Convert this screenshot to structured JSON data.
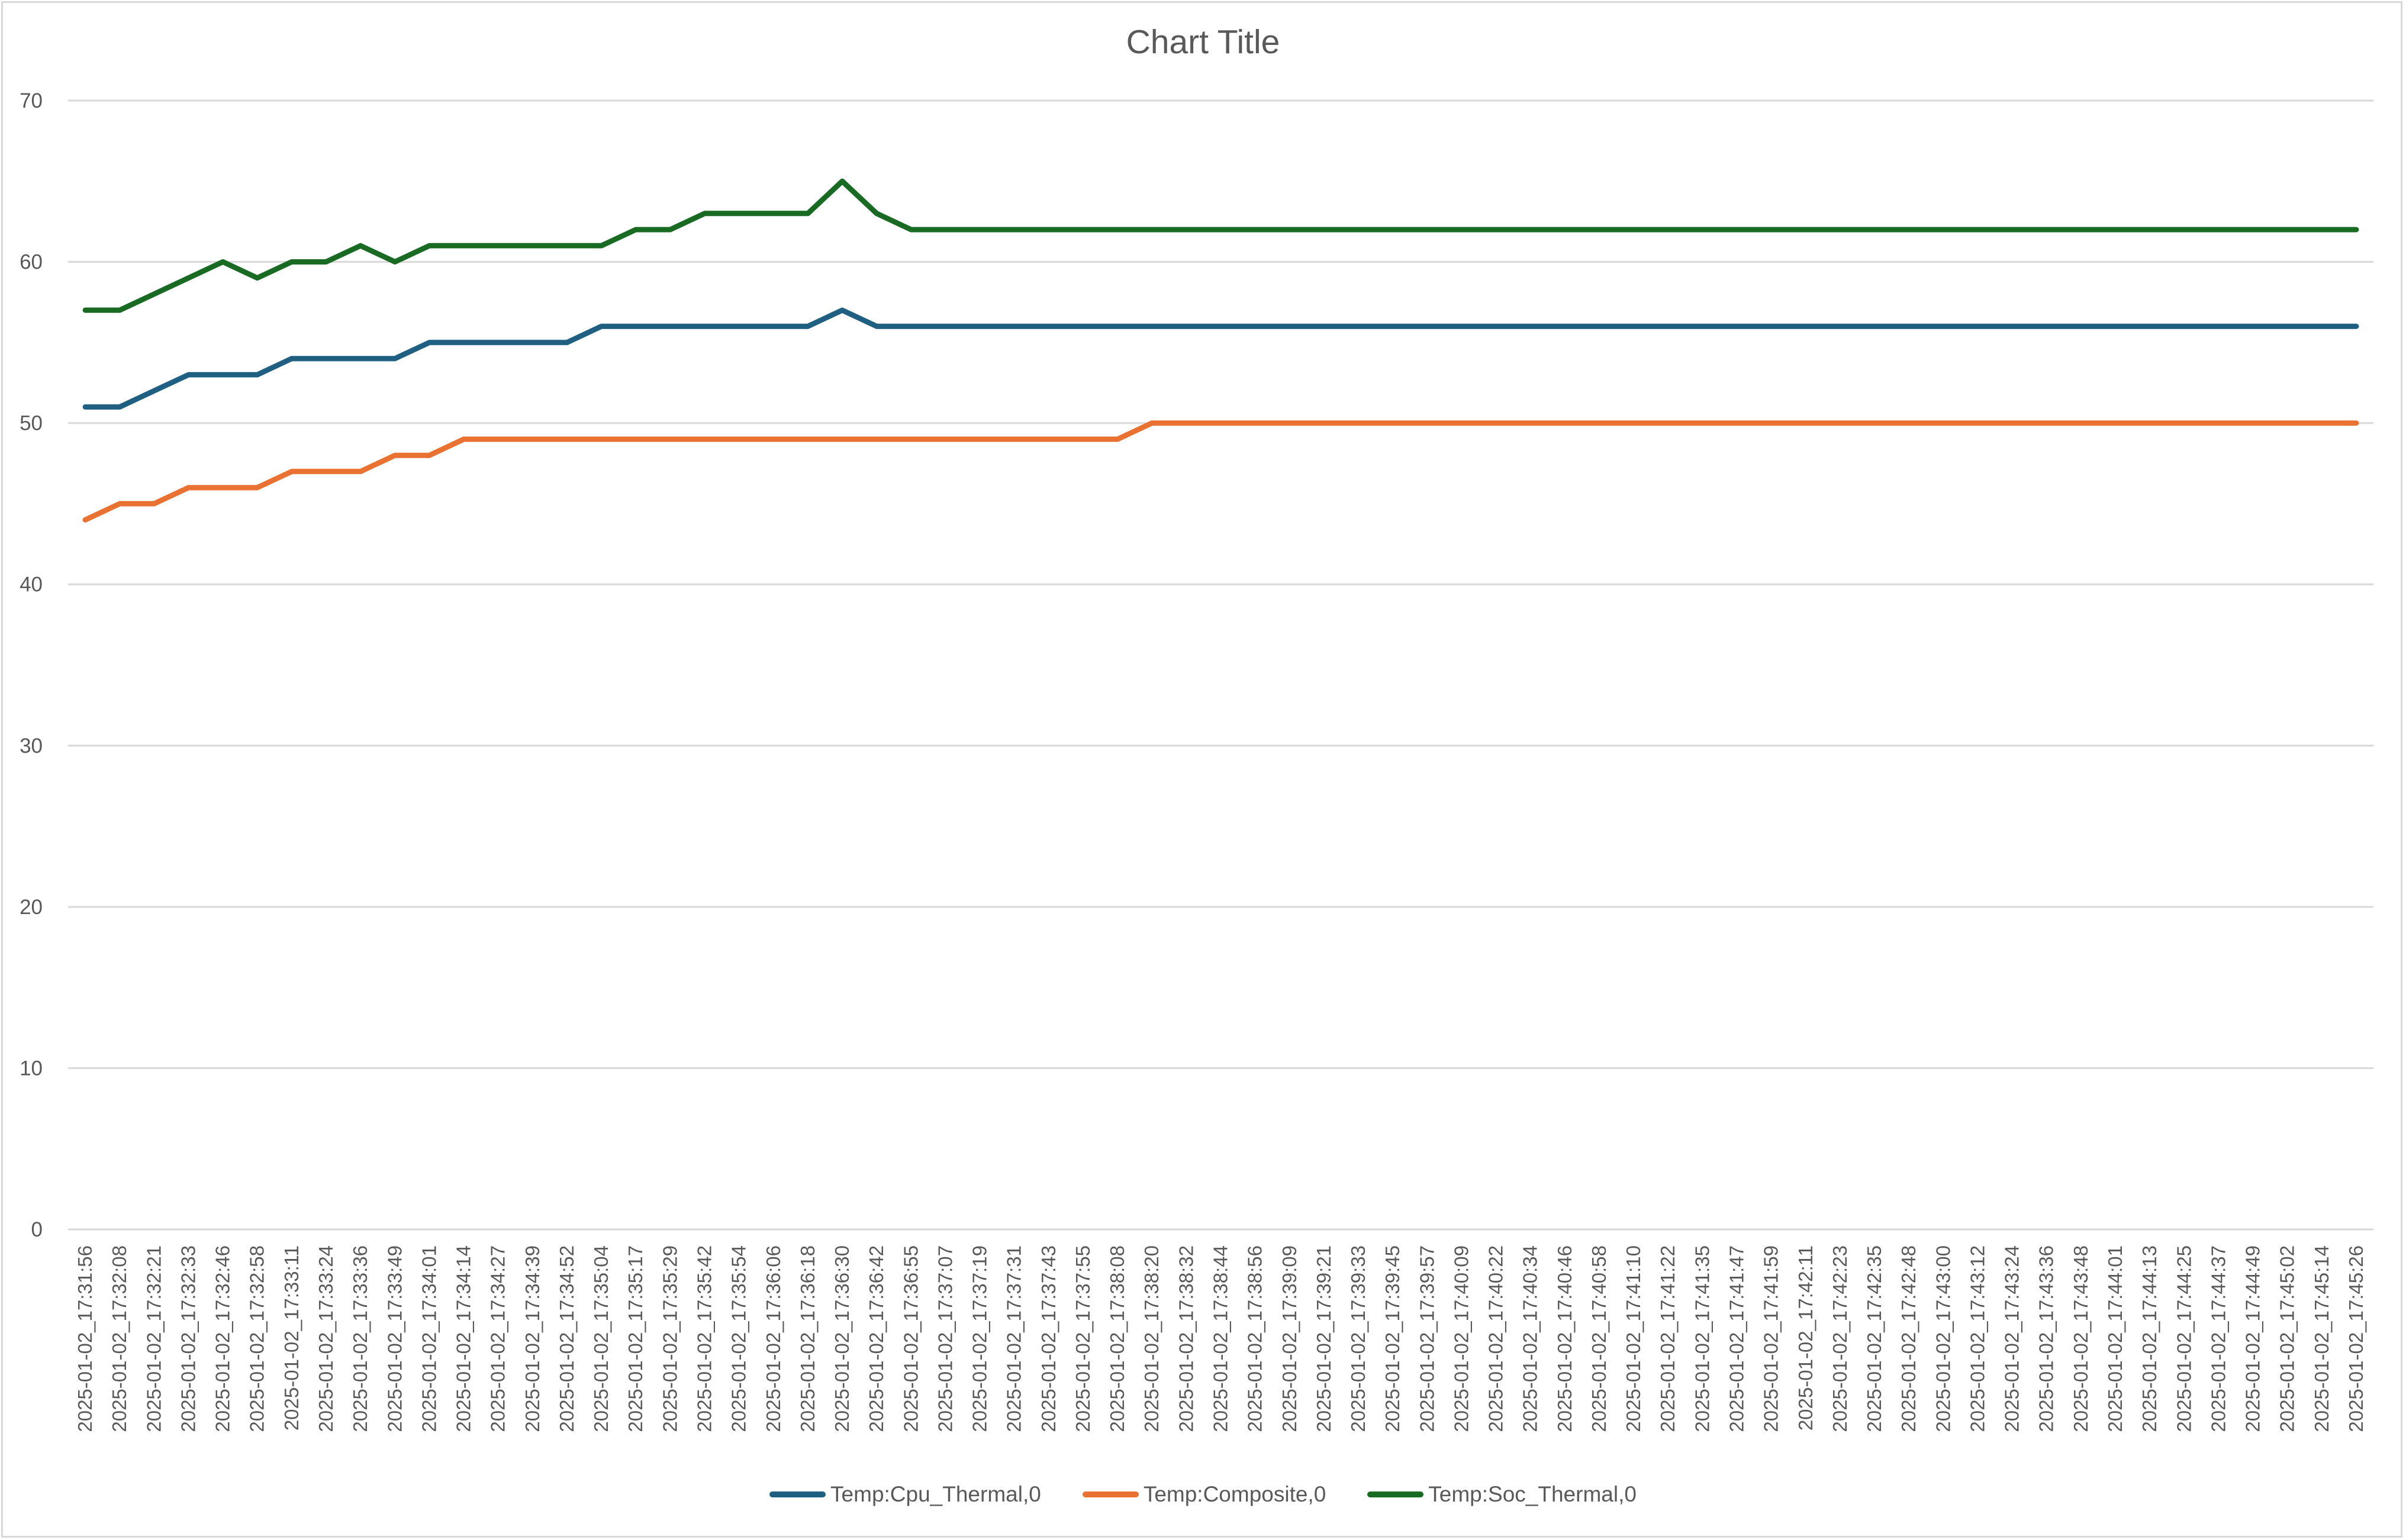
{
  "chart_data": {
    "type": "line",
    "title": "Chart Title",
    "xlabel": "",
    "ylabel": "",
    "ylim": [
      0,
      70
    ],
    "yticks": [
      0,
      10,
      20,
      30,
      40,
      50,
      60,
      70
    ],
    "grid": true,
    "legend_position": "bottom",
    "x_tick_labels": [
      "2025-01-02_17:31:56",
      "2025-01-02_17:32:08",
      "2025-01-02_17:32:21",
      "2025-01-02_17:32:33",
      "2025-01-02_17:32:46",
      "2025-01-02_17:32:58",
      "2025-01-02_17:33:11",
      "2025-01-02_17:33:24",
      "2025-01-02_17:33:36",
      "2025-01-02_17:33:49",
      "2025-01-02_17:34:01",
      "2025-01-02_17:34:14",
      "2025-01-02_17:34:27",
      "2025-01-02_17:34:39",
      "2025-01-02_17:34:52",
      "2025-01-02_17:35:04",
      "2025-01-02_17:35:17",
      "2025-01-02_17:35:29",
      "2025-01-02_17:35:42",
      "2025-01-02_17:35:54",
      "2025-01-02_17:36:06",
      "2025-01-02_17:36:18",
      "2025-01-02_17:36:30",
      "2025-01-02_17:36:42",
      "2025-01-02_17:36:55",
      "2025-01-02_17:37:07",
      "2025-01-02_17:37:19",
      "2025-01-02_17:37:31",
      "2025-01-02_17:37:43",
      "2025-01-02_17:37:55",
      "2025-01-02_17:38:08",
      "2025-01-02_17:38:20",
      "2025-01-02_17:38:32",
      "2025-01-02_17:38:44",
      "2025-01-02_17:38:56",
      "2025-01-02_17:39:09",
      "2025-01-02_17:39:21",
      "2025-01-02_17:39:33",
      "2025-01-02_17:39:45",
      "2025-01-02_17:39:57",
      "2025-01-02_17:40:09",
      "2025-01-02_17:40:22",
      "2025-01-02_17:40:34",
      "2025-01-02_17:40:46",
      "2025-01-02_17:40:58",
      "2025-01-02_17:41:10",
      "2025-01-02_17:41:22",
      "2025-01-02_17:41:35",
      "2025-01-02_17:41:47",
      "2025-01-02_17:41:59",
      "2025-01-02_17:42:11",
      "2025-01-02_17:42:23",
      "2025-01-02_17:42:35",
      "2025-01-02_17:42:48",
      "2025-01-02_17:43:00",
      "2025-01-02_17:43:12",
      "2025-01-02_17:43:24",
      "2025-01-02_17:43:36",
      "2025-01-02_17:43:48",
      "2025-01-02_17:44:01",
      "2025-01-02_17:44:13",
      "2025-01-02_17:44:25",
      "2025-01-02_17:44:37",
      "2025-01-02_17:44:49",
      "2025-01-02_17:45:02",
      "2025-01-02_17:45:14",
      "2025-01-02_17:45:26"
    ],
    "series": [
      {
        "name": "Temp:Cpu_Thermal,0",
        "color": "#1f5f82",
        "values": [
          51,
          51,
          52,
          53,
          53,
          53,
          54,
          54,
          54,
          54,
          55,
          55,
          55,
          55,
          55,
          56,
          56,
          56,
          56,
          56,
          56,
          56,
          57,
          56,
          56,
          56,
          56,
          56,
          56,
          56,
          56,
          56,
          56,
          56,
          56,
          56,
          56,
          56,
          56,
          56,
          56,
          56,
          56,
          56,
          56,
          56,
          56,
          56,
          56,
          56,
          56,
          56,
          56,
          56,
          56,
          56,
          56,
          56,
          56,
          56,
          56,
          56,
          56,
          56,
          56,
          56,
          56
        ]
      },
      {
        "name": "Temp:Composite,0",
        "color": "#e97132",
        "values": [
          44,
          45,
          45,
          46,
          46,
          46,
          47,
          47,
          47,
          48,
          48,
          49,
          49,
          49,
          49,
          49,
          49,
          49,
          49,
          49,
          49,
          49,
          49,
          49,
          49,
          49,
          49,
          49,
          49,
          49,
          49,
          50,
          50,
          50,
          50,
          50,
          50,
          50,
          50,
          50,
          50,
          50,
          50,
          50,
          50,
          50,
          50,
          50,
          50,
          50,
          50,
          50,
          50,
          50,
          50,
          50,
          50,
          50,
          50,
          50,
          50,
          50,
          50,
          50,
          50,
          50,
          50
        ]
      },
      {
        "name": "Temp:Soc_Thermal,0",
        "color": "#196b24",
        "values": [
          57,
          57,
          58,
          59,
          60,
          59,
          60,
          60,
          61,
          60,
          61,
          61,
          61,
          61,
          61,
          61,
          62,
          62,
          63,
          63,
          63,
          63,
          65,
          63,
          62,
          62,
          62,
          62,
          62,
          62,
          62,
          62,
          62,
          62,
          62,
          62,
          62,
          62,
          62,
          62,
          62,
          62,
          62,
          62,
          62,
          62,
          62,
          62,
          62,
          62,
          62,
          62,
          62,
          62,
          62,
          62,
          62,
          62,
          62,
          62,
          62,
          62,
          62,
          62,
          62,
          62,
          62
        ]
      }
    ]
  }
}
